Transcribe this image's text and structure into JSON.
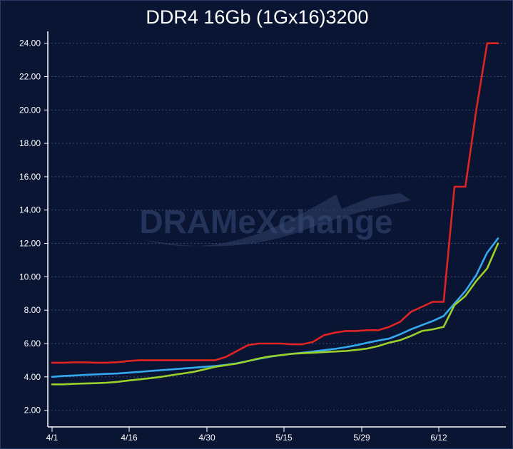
{
  "chart_data": {
    "type": "line",
    "title": "DDR4 16Gb (1Gx16)3200",
    "xlabel": "",
    "ylabel": "",
    "ylim": [
      1.0,
      24.5
    ],
    "grid": true,
    "watermark": "DRAMeXchange",
    "x_tick_labels": [
      "4/1",
      "4/16",
      "4/30",
      "5/15",
      "5/29",
      "6/12"
    ],
    "y_ticks": [
      2,
      4,
      6,
      8,
      10,
      12,
      14,
      16,
      18,
      20,
      22,
      24
    ],
    "y_tick_labels": [
      "2.00",
      "4.00",
      "6.00",
      "8.00",
      "10.00",
      "12.00",
      "14.00",
      "16.00",
      "18.00",
      "20.00",
      "22.00",
      "24.00"
    ],
    "x": [
      "4/1",
      "4/3",
      "4/5",
      "4/7",
      "4/9",
      "4/11",
      "4/13",
      "4/15",
      "4/17",
      "4/19",
      "4/21",
      "4/23",
      "4/25",
      "4/27",
      "4/29",
      "5/1",
      "5/3",
      "5/5",
      "5/7",
      "5/9",
      "5/11",
      "5/13",
      "5/15",
      "5/17",
      "5/19",
      "5/21",
      "5/23",
      "5/25",
      "5/27",
      "5/29",
      "5/31",
      "6/2",
      "6/4",
      "6/6",
      "6/8",
      "6/10",
      "6/12",
      "6/14",
      "6/16",
      "6/18",
      "6/20",
      "6/22"
    ],
    "series": [
      {
        "color": "#e02424",
        "values": [
          4.85,
          4.85,
          4.87,
          4.87,
          4.85,
          4.85,
          4.88,
          4.95,
          5.0,
          5.0,
          5.0,
          5.0,
          5.0,
          5.0,
          5.0,
          5.0,
          5.2,
          5.55,
          5.9,
          6.0,
          6.0,
          6.0,
          5.95,
          5.95,
          6.1,
          6.5,
          6.65,
          6.75,
          6.75,
          6.8,
          6.8,
          7.0,
          7.3,
          7.9,
          8.2,
          8.5,
          8.5,
          15.4,
          15.4,
          20.0,
          24.0,
          24.0
        ]
      },
      {
        "color": "#33aaf0",
        "values": [
          4.0,
          4.05,
          4.08,
          4.12,
          4.15,
          4.18,
          4.2,
          4.25,
          4.3,
          4.35,
          4.4,
          4.45,
          4.5,
          4.55,
          4.6,
          4.65,
          4.72,
          4.82,
          4.95,
          5.08,
          5.2,
          5.3,
          5.38,
          5.45,
          5.52,
          5.6,
          5.68,
          5.78,
          5.9,
          6.05,
          6.18,
          6.3,
          6.55,
          6.85,
          7.1,
          7.35,
          7.65,
          8.4,
          9.15,
          10.1,
          11.45,
          12.3
        ]
      },
      {
        "color": "#9ad12a",
        "values": [
          3.55,
          3.55,
          3.58,
          3.6,
          3.62,
          3.65,
          3.7,
          3.78,
          3.85,
          3.92,
          4.0,
          4.1,
          4.2,
          4.3,
          4.45,
          4.6,
          4.7,
          4.8,
          4.95,
          5.1,
          5.22,
          5.3,
          5.38,
          5.42,
          5.45,
          5.48,
          5.52,
          5.55,
          5.62,
          5.7,
          5.85,
          6.05,
          6.2,
          6.45,
          6.75,
          6.85,
          7.0,
          8.3,
          8.85,
          9.75,
          10.5,
          12.0
        ]
      }
    ]
  }
}
